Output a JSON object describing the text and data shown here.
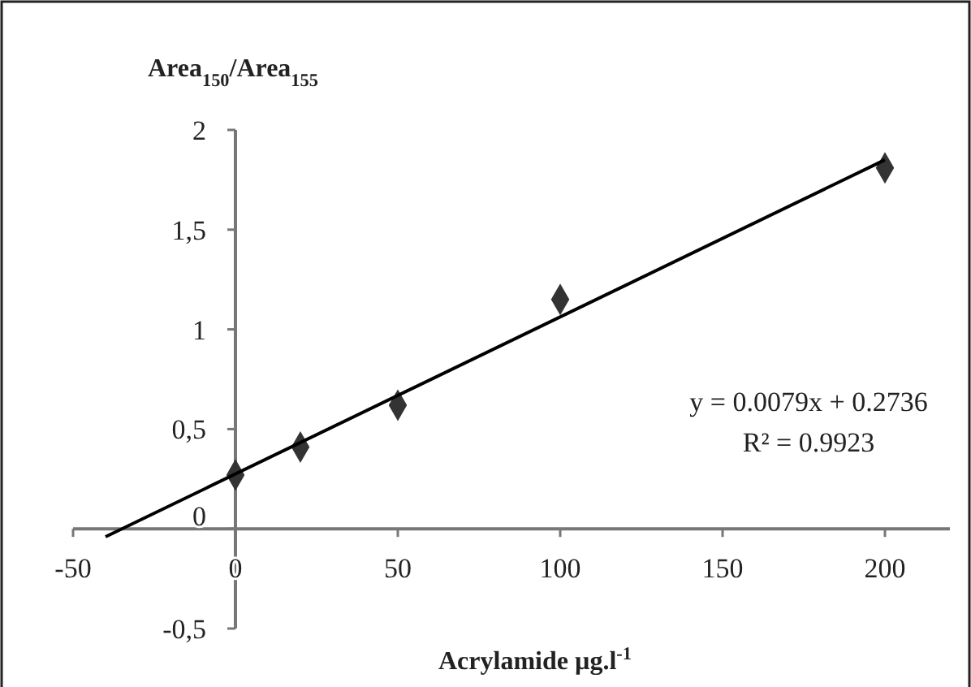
{
  "chart_data": {
    "type": "scatter",
    "xlabel": "Acrylamide µg.l$^{-1}$",
    "ylabel": "Area$_{150}$/Area$_{155}$",
    "xlim": [
      -50,
      220
    ],
    "ylim": [
      -0.5,
      2
    ],
    "xticks": [
      -50,
      0,
      50,
      100,
      150,
      200
    ],
    "yticks": [
      {
        "value": -0.5,
        "label": "-0,5"
      },
      0,
      {
        "value": 0.5,
        "label": "0,5"
      },
      1,
      {
        "value": 1.5,
        "label": "1,5"
      },
      2
    ],
    "grid": false,
    "marker": "diamond",
    "series": [
      {
        "color": "#333333",
        "x": [
          0,
          20,
          50,
          100,
          200
        ],
        "values": [
          0.27,
          0.41,
          0.62,
          1.15,
          1.81
        ]
      },
      {
        "type": "line",
        "color": "#000000",
        "marker": "none",
        "line_style": "solid",
        "x": [
          -40,
          200
        ],
        "values": [
          -0.04,
          1.85
        ]
      }
    ],
    "annotations": [
      "y = 0.0079x + 0.2736",
      "R² = 0.9923"
    ]
  }
}
